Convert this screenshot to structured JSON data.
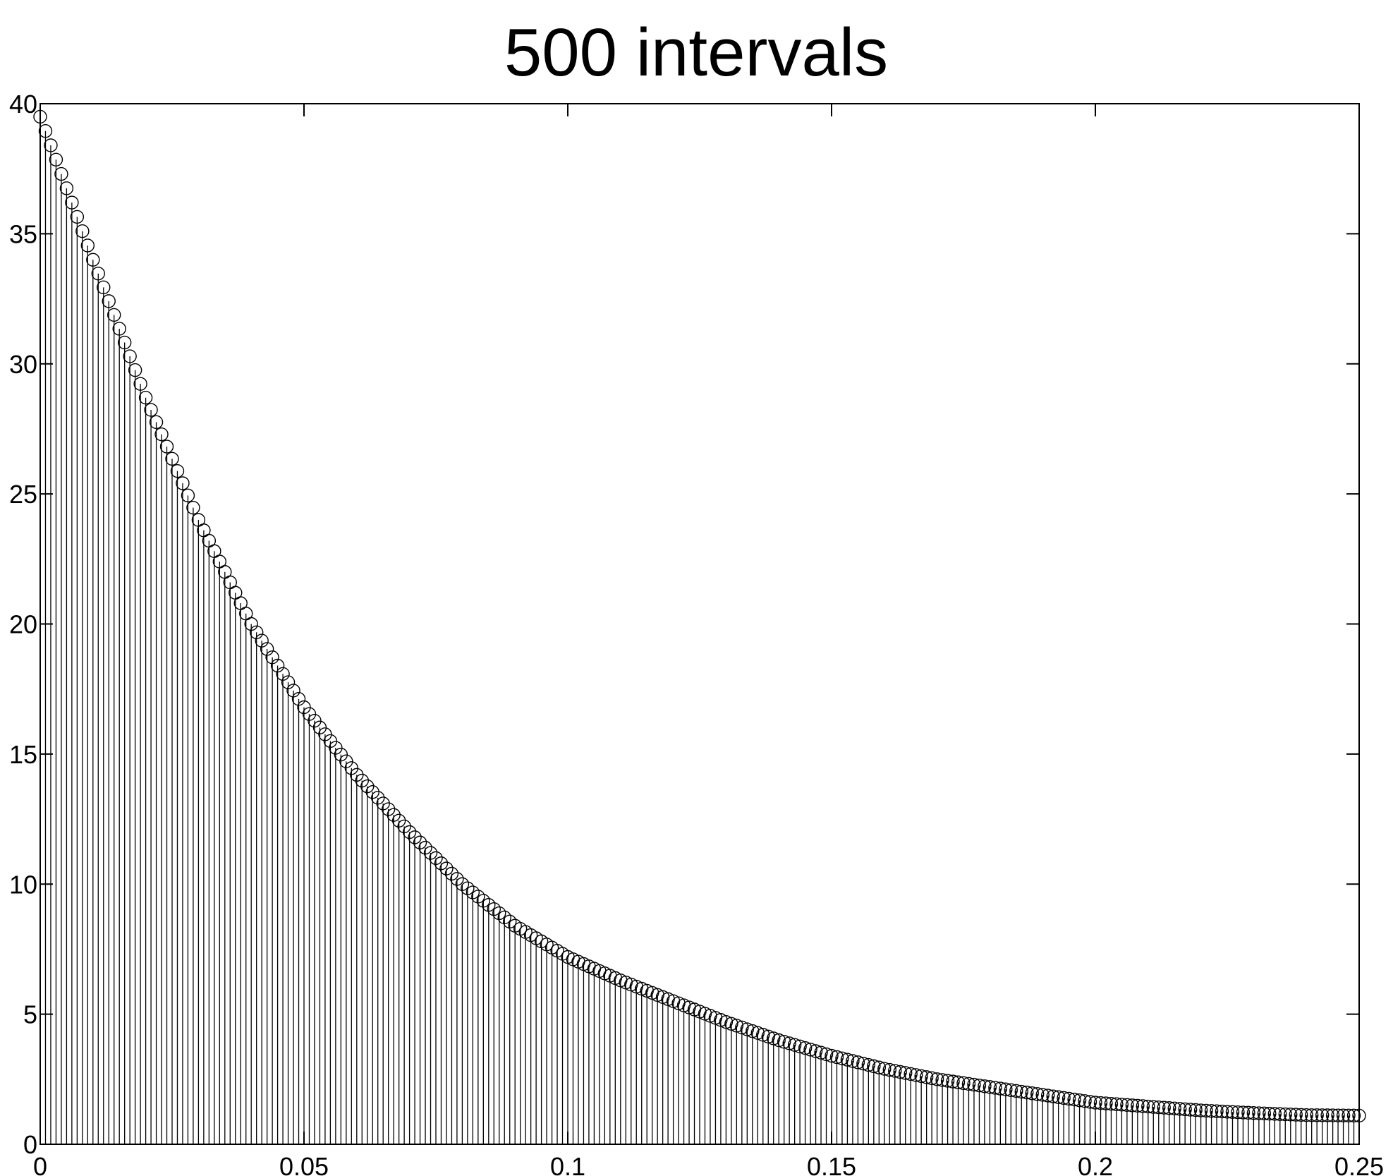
{
  "chart_data": {
    "type": "stem",
    "title": "500 intervals",
    "xlabel": "",
    "ylabel": "",
    "xlim": [
      0,
      0.25
    ],
    "ylim": [
      0,
      40
    ],
    "x_ticks": [
      "0",
      "0.05",
      "0.1",
      "0.15",
      "0.2",
      "0.25"
    ],
    "y_ticks": [
      "0",
      "5",
      "10",
      "15",
      "20",
      "25",
      "30",
      "35",
      "40"
    ],
    "grid": false,
    "marker": "open-circle",
    "color": "#000000",
    "series": [
      {
        "x_start": 0,
        "x_end": 0.25,
        "n_points": 251,
        "sample_points": [
          [
            0.0,
            39.5
          ],
          [
            0.01,
            34.0
          ],
          [
            0.02,
            28.7
          ],
          [
            0.03,
            24.0
          ],
          [
            0.04,
            20.0
          ],
          [
            0.05,
            16.8
          ],
          [
            0.06,
            14.2
          ],
          [
            0.07,
            12.0
          ],
          [
            0.08,
            10.0
          ],
          [
            0.09,
            8.4
          ],
          [
            0.1,
            7.2
          ],
          [
            0.11,
            6.3
          ],
          [
            0.12,
            5.5
          ],
          [
            0.13,
            4.7
          ],
          [
            0.14,
            4.0
          ],
          [
            0.15,
            3.4
          ],
          [
            0.16,
            2.9
          ],
          [
            0.17,
            2.5
          ],
          [
            0.18,
            2.2
          ],
          [
            0.19,
            1.9
          ],
          [
            0.2,
            1.6
          ],
          [
            0.21,
            1.45
          ],
          [
            0.22,
            1.3
          ],
          [
            0.23,
            1.2
          ],
          [
            0.24,
            1.12
          ],
          [
            0.25,
            1.1
          ]
        ]
      }
    ]
  }
}
